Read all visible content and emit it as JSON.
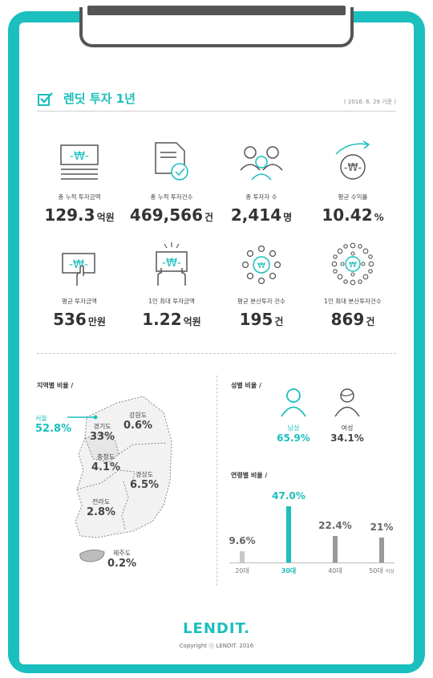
{
  "header": {
    "title": "렌딧 투자 1년",
    "date": "( 2016. 6. 29 기준 )"
  },
  "stats": [
    {
      "label": "총 누적 투자금액",
      "value": "129.3",
      "unit": "억원",
      "icon": "money-document-icon"
    },
    {
      "label": "총 누적 투자건수",
      "value": "469,566",
      "unit": "건",
      "icon": "document-check-icon"
    },
    {
      "label": "총 투자자 수",
      "value": "2,414",
      "unit": "명",
      "icon": "people-icon"
    },
    {
      "label": "평균 수익률",
      "value": "10.42",
      "unit": "%",
      "icon": "growth-coin-icon"
    },
    {
      "label": "평균 투자금액",
      "value": "536",
      "unit": "만원",
      "icon": "hand-money-icon"
    },
    {
      "label": "1인 최대 투자금액",
      "value": "1.22",
      "unit": "억원",
      "icon": "hands-money-icon"
    },
    {
      "label": "평균 분산투자 건수",
      "value": "195",
      "unit": "건",
      "icon": "coin-dots-icon"
    },
    {
      "label": "1인 최대 분산투자건수",
      "value": "869",
      "unit": "건",
      "icon": "coin-dense-dots-icon"
    }
  ],
  "region": {
    "title": "지역별 비율 /",
    "items": [
      {
        "name": "서울",
        "value": "52.8%"
      },
      {
        "name": "경기도",
        "value": "33%"
      },
      {
        "name": "강원도",
        "value": "0.6%"
      },
      {
        "name": "충청도",
        "value": "4.1%"
      },
      {
        "name": "경상도",
        "value": "6.5%"
      },
      {
        "name": "전라도",
        "value": "2.8%"
      },
      {
        "name": "제주도",
        "value": "0.2%"
      }
    ]
  },
  "gender": {
    "title": "성별 비율 /",
    "male": {
      "label": "남성",
      "value": "65.9%"
    },
    "female": {
      "label": "여성",
      "value": "34.1%"
    }
  },
  "age": {
    "title": "연령별 비율 /",
    "bars": [
      {
        "label": "20대",
        "value": 9.6,
        "display": "9.6%"
      },
      {
        "label": "30대",
        "value": 47.0,
        "display": "47.0%"
      },
      {
        "label": "40대",
        "value": 22.4,
        "display": "22.4%"
      },
      {
        "label": "50대",
        "suffix": "이상",
        "value": 21,
        "display": "21%"
      }
    ]
  },
  "footer": {
    "logo": "LENDIT.",
    "copyright": "Copyright ⓒ LENDIT. 2016"
  },
  "colors": {
    "accent": "#1bbfbd",
    "text": "#333333",
    "bar": "#999999"
  }
}
